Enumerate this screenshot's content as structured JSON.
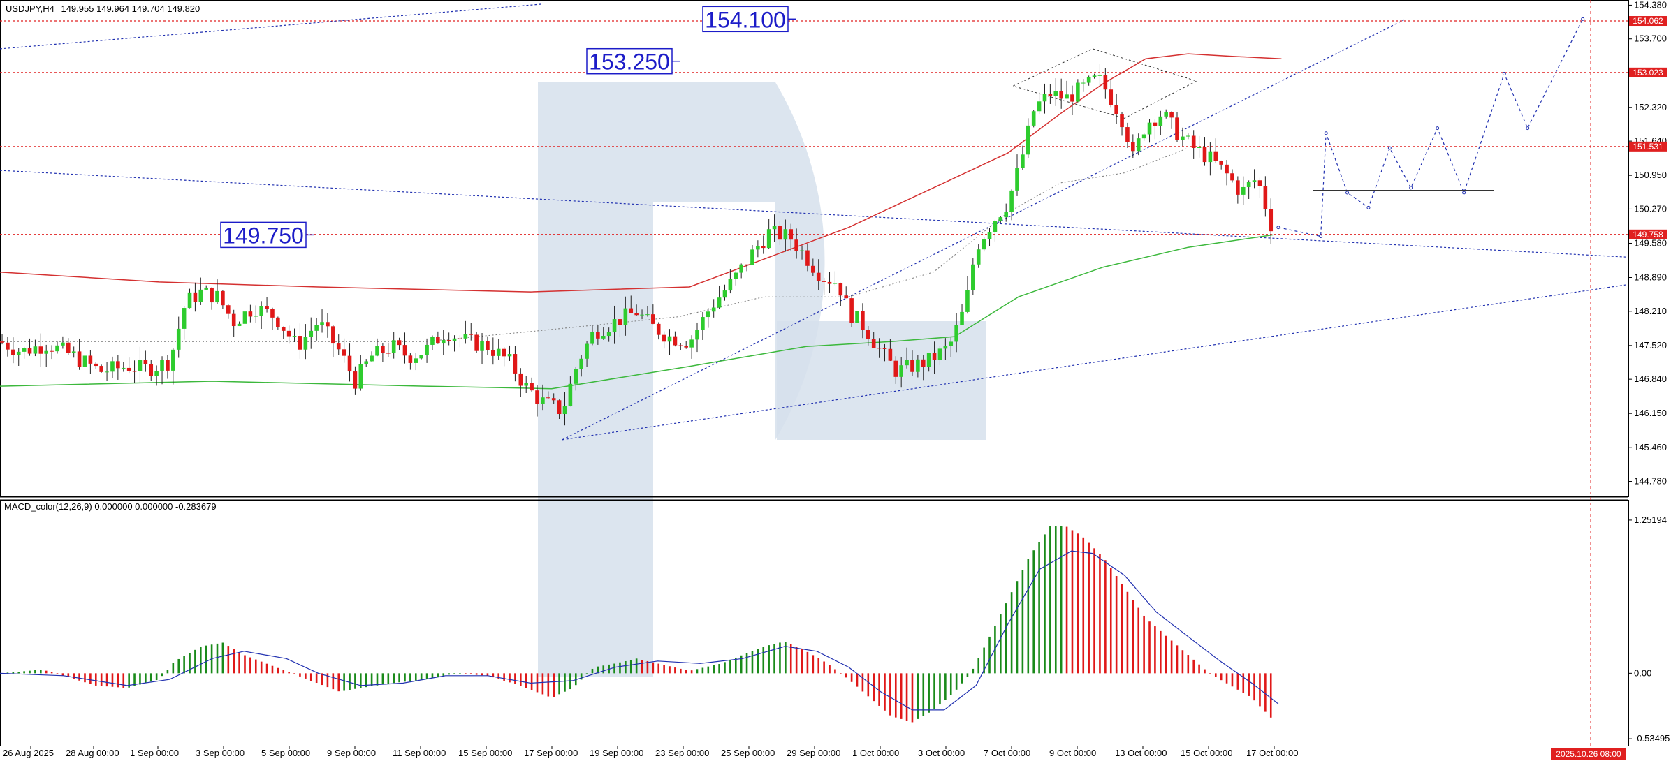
{
  "header": {
    "instrument": "USDJPY,H4",
    "ohlc": "149.955 149.964 149.704 149.820"
  },
  "macd_header": {
    "label": "MACD_color(12,26,9) 0.000000 0.000000 -0.283679"
  },
  "annotations": [
    {
      "text": "154.100",
      "price": 154.1
    },
    {
      "text": "153.250",
      "price": 153.25
    },
    {
      "text": "149.750",
      "price": 149.75
    }
  ],
  "price_tags": [
    {
      "text": "154.062",
      "price": 154.062,
      "color": "#e02020"
    },
    {
      "text": "153.023",
      "price": 153.023,
      "color": "#e02020"
    },
    {
      "text": "151.531",
      "price": 151.531,
      "color": "#e02020"
    },
    {
      "text": "149.758",
      "price": 149.758,
      "color": "#e02020"
    }
  ],
  "time_tag": {
    "text": "2025.10.26 08:00"
  },
  "colors": {
    "bull": "#2ecc2e",
    "bear": "#e01818",
    "macd_pos": "#1a8a1a",
    "macd_neg": "#e01818",
    "signal": "#2030b0",
    "ma_slow": "#d43030",
    "ma_green": "#3cb83c",
    "level": "#e02020",
    "trend": "#2030b0",
    "watermark": "#d6e0ec"
  },
  "chart_data": {
    "type": "candlestick",
    "instrument": "USDJPY",
    "timeframe": "H4",
    "price_axis": {
      "ticks": [
        "154.380",
        "153.700",
        "153.010",
        "152.320",
        "151.640",
        "150.950",
        "150.270",
        "149.580",
        "148.890",
        "148.210",
        "147.520",
        "146.840",
        "146.150",
        "145.460",
        "144.780"
      ],
      "range": [
        144.52,
        154.4
      ]
    },
    "macd_axis": {
      "ticks": [
        "1.25194",
        "0.00",
        "-0.53495"
      ],
      "range": [
        -0.58,
        1.28
      ]
    },
    "x_axis": {
      "labels": [
        "26 Aug 2025",
        "28 Aug 00:00",
        "1 Sep 00:00",
        "3 Sep 00:00",
        "5 Sep 00:00",
        "9 Sep 00:00",
        "11 Sep 00:00",
        "15 Sep 00:00",
        "17 Sep 00:00",
        "19 Sep 00:00",
        "23 Sep 00:00",
        "25 Sep 00:00",
        "29 Sep 00:00",
        "1 Oct 00:00",
        "3 Oct 00:00",
        "7 Oct 00:00",
        "9 Oct 00:00",
        "13 Oct 00:00",
        "15 Oct 00:00",
        "17 Oct 00:00"
      ]
    },
    "price_path": [
      [
        0,
        147.6
      ],
      [
        20,
        147.4
      ],
      [
        45,
        147.55
      ],
      [
        70,
        147.3
      ],
      [
        95,
        147.0
      ],
      [
        120,
        147.1
      ],
      [
        140,
        147.05
      ],
      [
        160,
        147.2
      ],
      [
        175,
        148.4
      ],
      [
        190,
        148.6
      ],
      [
        205,
        148.5
      ],
      [
        220,
        148.0
      ],
      [
        240,
        148.3
      ],
      [
        260,
        148.1
      ],
      [
        280,
        147.5
      ],
      [
        300,
        148.0
      ],
      [
        320,
        147.4
      ],
      [
        335,
        146.8
      ],
      [
        350,
        147.3
      ],
      [
        370,
        147.5
      ],
      [
        385,
        147.3
      ],
      [
        400,
        147.4
      ],
      [
        420,
        147.8
      ],
      [
        440,
        147.6
      ],
      [
        460,
        147.5
      ],
      [
        480,
        147.2
      ],
      [
        495,
        146.7
      ],
      [
        510,
        146.4
      ],
      [
        530,
        146.2
      ],
      [
        545,
        147.2
      ],
      [
        560,
        147.8
      ],
      [
        580,
        148.0
      ],
      [
        600,
        148.2
      ],
      [
        615,
        147.9
      ],
      [
        630,
        147.7
      ],
      [
        650,
        147.6
      ],
      [
        670,
        148.3
      ],
      [
        690,
        148.8
      ],
      [
        710,
        149.4
      ],
      [
        725,
        149.8
      ],
      [
        745,
        149.7
      ],
      [
        760,
        149.3
      ],
      [
        775,
        148.9
      ],
      [
        790,
        148.8
      ],
      [
        800,
        148.2
      ],
      [
        815,
        147.9
      ],
      [
        830,
        147.4
      ],
      [
        845,
        147.0
      ],
      [
        860,
        147.1
      ],
      [
        875,
        147.2
      ],
      [
        895,
        147.5
      ],
      [
        910,
        148.3
      ],
      [
        920,
        149.5
      ],
      [
        935,
        150.0
      ],
      [
        950,
        150.4
      ],
      [
        962,
        151.2
      ],
      [
        975,
        152.3
      ],
      [
        990,
        152.6
      ],
      [
        1005,
        152.5
      ],
      [
        1020,
        152.7
      ],
      [
        1035,
        152.9
      ],
      [
        1045,
        152.6
      ],
      [
        1060,
        152.0
      ],
      [
        1068,
        151.3
      ],
      [
        1080,
        152.0
      ],
      [
        1095,
        152.2
      ],
      [
        1110,
        151.8
      ],
      [
        1125,
        151.5
      ],
      [
        1140,
        151.3
      ],
      [
        1155,
        151.0
      ],
      [
        1170,
        150.6
      ],
      [
        1185,
        150.9
      ],
      [
        1200,
        149.82
      ]
    ],
    "forecast_path": [
      [
        1205,
        149.9
      ],
      [
        1245,
        149.72
      ],
      [
        1250,
        151.8
      ],
      [
        1270,
        150.6
      ],
      [
        1290,
        150.3
      ],
      [
        1310,
        151.5
      ],
      [
        1330,
        150.7
      ],
      [
        1355,
        151.9
      ],
      [
        1380,
        150.6
      ],
      [
        1418,
        153.0
      ],
      [
        1440,
        151.9
      ],
      [
        1492,
        154.1
      ]
    ],
    "macd_hist_path": [
      [
        0,
        0.0
      ],
      [
        40,
        0.03
      ],
      [
        60,
        -0.02
      ],
      [
        90,
        -0.1
      ],
      [
        120,
        -0.12
      ],
      [
        150,
        -0.05
      ],
      [
        165,
        0.1
      ],
      [
        190,
        0.22
      ],
      [
        210,
        0.25
      ],
      [
        230,
        0.15
      ],
      [
        260,
        0.05
      ],
      [
        290,
        -0.05
      ],
      [
        320,
        -0.15
      ],
      [
        340,
        -0.12
      ],
      [
        370,
        -0.08
      ],
      [
        400,
        -0.05
      ],
      [
        430,
        0.0
      ],
      [
        460,
        -0.02
      ],
      [
        490,
        -0.1
      ],
      [
        520,
        -0.2
      ],
      [
        540,
        -0.12
      ],
      [
        560,
        0.05
      ],
      [
        580,
        0.08
      ],
      [
        600,
        0.12
      ],
      [
        620,
        0.08
      ],
      [
        650,
        0.02
      ],
      [
        680,
        0.08
      ],
      [
        700,
        0.15
      ],
      [
        720,
        0.22
      ],
      [
        740,
        0.26
      ],
      [
        760,
        0.18
      ],
      [
        780,
        0.08
      ],
      [
        800,
        -0.05
      ],
      [
        820,
        -0.2
      ],
      [
        840,
        -0.35
      ],
      [
        860,
        -0.4
      ],
      [
        880,
        -0.3
      ],
      [
        900,
        -0.15
      ],
      [
        915,
        0.0
      ],
      [
        930,
        0.25
      ],
      [
        950,
        0.6
      ],
      [
        970,
        0.95
      ],
      [
        990,
        1.2
      ],
      [
        1005,
        1.2
      ],
      [
        1020,
        1.12
      ],
      [
        1040,
        0.95
      ],
      [
        1060,
        0.7
      ],
      [
        1080,
        0.45
      ],
      [
        1100,
        0.3
      ],
      [
        1120,
        0.15
      ],
      [
        1140,
        0.0
      ],
      [
        1160,
        -0.1
      ],
      [
        1180,
        -0.2
      ],
      [
        1200,
        -0.38
      ]
    ],
    "macd_signal_path": [
      [
        0,
        0.0
      ],
      [
        60,
        -0.02
      ],
      [
        120,
        -0.1
      ],
      [
        160,
        -0.05
      ],
      [
        200,
        0.12
      ],
      [
        230,
        0.18
      ],
      [
        270,
        0.12
      ],
      [
        300,
        0.0
      ],
      [
        340,
        -0.1
      ],
      [
        380,
        -0.08
      ],
      [
        420,
        -0.02
      ],
      [
        460,
        -0.02
      ],
      [
        500,
        -0.08
      ],
      [
        540,
        -0.06
      ],
      [
        580,
        0.05
      ],
      [
        620,
        0.1
      ],
      [
        660,
        0.08
      ],
      [
        700,
        0.12
      ],
      [
        740,
        0.22
      ],
      [
        770,
        0.18
      ],
      [
        800,
        0.05
      ],
      [
        830,
        -0.15
      ],
      [
        860,
        -0.3
      ],
      [
        890,
        -0.3
      ],
      [
        920,
        -0.1
      ],
      [
        950,
        0.4
      ],
      [
        980,
        0.85
      ],
      [
        1010,
        1.0
      ],
      [
        1030,
        0.98
      ],
      [
        1060,
        0.8
      ],
      [
        1090,
        0.5
      ],
      [
        1120,
        0.3
      ],
      [
        1150,
        0.1
      ],
      [
        1180,
        -0.08
      ],
      [
        1205,
        -0.25
      ]
    ],
    "ma_slow_path": [
      [
        0,
        149.0
      ],
      [
        150,
        148.8
      ],
      [
        300,
        148.7
      ],
      [
        500,
        148.6
      ],
      [
        650,
        148.7
      ],
      [
        800,
        149.9
      ],
      [
        950,
        151.4
      ],
      [
        1000,
        152.2
      ],
      [
        1040,
        152.8
      ],
      [
        1080,
        153.3
      ],
      [
        1120,
        153.4
      ],
      [
        1160,
        153.35
      ],
      [
        1208,
        153.3
      ]
    ],
    "ma_mid_path": [
      [
        0,
        147.6
      ],
      [
        200,
        147.6
      ],
      [
        400,
        147.6
      ],
      [
        500,
        147.8
      ],
      [
        640,
        148.1
      ],
      [
        720,
        148.5
      ],
      [
        800,
        148.5
      ],
      [
        880,
        149.0
      ],
      [
        950,
        150.2
      ],
      [
        1000,
        150.8
      ],
      [
        1060,
        151.0
      ],
      [
        1120,
        151.5
      ]
    ],
    "ma_green_path": [
      [
        0,
        146.7
      ],
      [
        200,
        146.8
      ],
      [
        400,
        146.7
      ],
      [
        520,
        146.65
      ],
      [
        650,
        147.1
      ],
      [
        760,
        147.5
      ],
      [
        840,
        147.6
      ],
      [
        900,
        147.7
      ],
      [
        960,
        148.5
      ],
      [
        1040,
        149.1
      ],
      [
        1120,
        149.5
      ],
      [
        1200,
        149.75
      ]
    ],
    "trend_lines": [
      {
        "from": [
          0,
          151.05
        ],
        "to": [
          1535,
          149.3
        ]
      },
      {
        "from": [
          530,
          145.62
        ],
        "to": [
          1535,
          148.75
        ]
      },
      {
        "from": [
          530,
          145.62
        ],
        "to": [
          1325,
          154.1
        ]
      },
      {
        "from": [
          0,
          153.5
        ],
        "to": [
          510,
          154.4
        ]
      }
    ],
    "levels": [
      154.062,
      153.023,
      151.531,
      149.758
    ]
  }
}
